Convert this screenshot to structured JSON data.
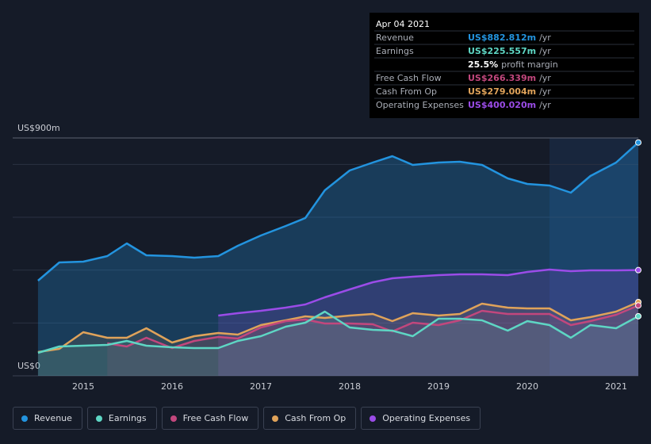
{
  "chart_data": {
    "type": "area",
    "x": [
      2014.49,
      2014.73,
      2015.0,
      2015.27,
      2015.49,
      2015.71,
      2016.0,
      2016.25,
      2016.52,
      2016.74,
      2017.0,
      2017.28,
      2017.5,
      2017.72,
      2018.0,
      2018.26,
      2018.48,
      2018.71,
      2019.0,
      2019.24,
      2019.49,
      2019.78,
      2020.0,
      2020.25,
      2020.49,
      2020.71,
      2021.0,
      2021.25
    ],
    "xlim": [
      2014.205,
      2021.25
    ],
    "xticks": [
      2015,
      2016,
      2017,
      2018,
      2019,
      2020,
      2021
    ],
    "ylim": [
      0,
      900
    ],
    "yticks": [
      {
        "value": 0,
        "label": "US$0"
      },
      {
        "value": 900,
        "label": "US$900m"
      }
    ],
    "gridlines": [
      200,
      400,
      600,
      800
    ],
    "highlight_start": 2020.25,
    "series": [
      {
        "name": "Revenue",
        "color": "#2394df",
        "values": [
          360,
          429,
          432,
          453,
          501,
          456,
          453,
          447,
          453,
          492,
          531,
          567,
          597,
          702,
          777,
          807,
          831,
          798,
          807,
          810,
          798,
          747,
          726,
          720,
          693,
          756,
          807,
          882.812
        ]
      },
      {
        "name": "Earnings",
        "color": "#5ed6c4",
        "values": [
          87,
          111,
          114,
          117,
          132,
          114,
          108,
          105,
          105,
          132,
          150,
          186,
          201,
          243,
          183,
          174,
          171,
          150,
          216,
          216,
          210,
          171,
          207,
          192,
          144,
          192,
          180,
          225.557
        ]
      },
      {
        "name": "Free Cash Flow",
        "color": "#c2477d",
        "values": [
          null,
          null,
          null,
          123,
          111,
          144,
          105,
          132,
          147,
          141,
          183,
          207,
          213,
          198,
          198,
          195,
          168,
          201,
          192,
          210,
          246,
          234,
          234,
          234,
          192,
          207,
          231,
          266.339
        ]
      },
      {
        "name": "Cash From Op",
        "color": "#e0a35a",
        "values": [
          90,
          102,
          165,
          144,
          144,
          180,
          126,
          150,
          162,
          156,
          192,
          210,
          225,
          219,
          228,
          234,
          207,
          237,
          228,
          234,
          273,
          258,
          255,
          255,
          210,
          222,
          243,
          279.004
        ]
      },
      {
        "name": "Operating Expenses",
        "color": "#9b4ce8",
        "values": [
          null,
          null,
          null,
          null,
          null,
          null,
          null,
          null,
          228,
          237,
          246,
          258,
          270,
          297,
          327,
          354,
          369,
          375,
          381,
          384,
          384,
          381,
          393,
          402,
          396,
          399,
          399,
          400.02
        ]
      }
    ],
    "tooltip": {
      "date": "Apr 04 2021",
      "rows": [
        {
          "label": "Revenue",
          "value": "US$882.812m",
          "unit": "/yr",
          "color": "#2394df"
        },
        {
          "label": "Earnings",
          "value": "US$225.557m",
          "unit": "/yr",
          "color": "#5ed6c4"
        },
        {
          "value": "25.5%",
          "unit": "profit margin",
          "color": "#ffffff"
        },
        {
          "label": "Free Cash Flow",
          "value": "US$266.339m",
          "unit": "/yr",
          "color": "#c2477d"
        },
        {
          "label": "Cash From Op",
          "value": "US$279.004m",
          "unit": "/yr",
          "color": "#e0a35a"
        },
        {
          "label": "Operating Expenses",
          "value": "US$400.020m",
          "unit": "/yr",
          "color": "#9b4ce8"
        }
      ]
    }
  }
}
